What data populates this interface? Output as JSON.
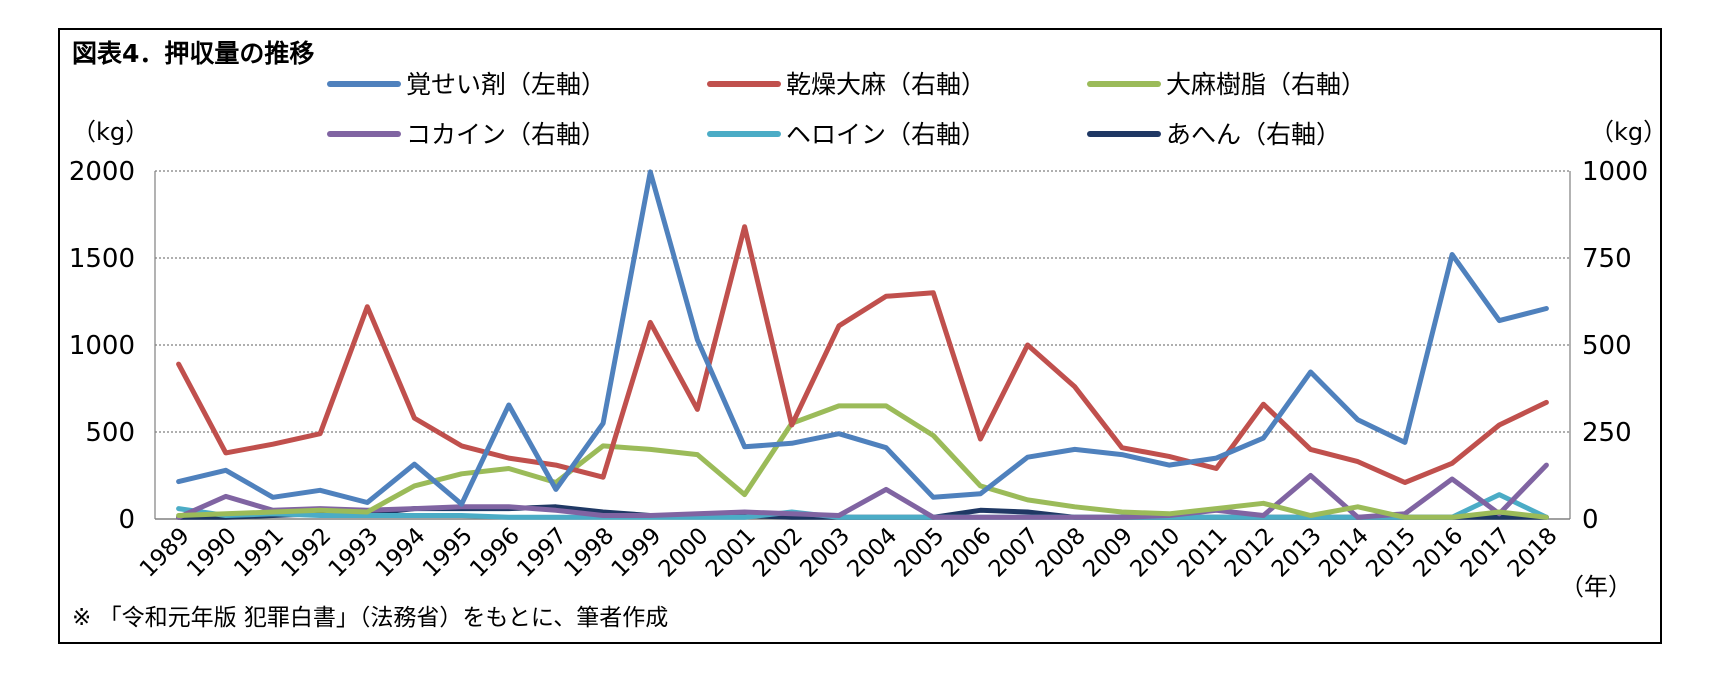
{
  "chart_data": {
    "type": "line",
    "title": "図表4．押収量の推移",
    "ylabel_left": "（kg）",
    "ylabel_right": "（kg）",
    "xlabel": "（年）",
    "source_note": "※ 「令和元年版 犯罪白書」（法務省）をもとに、筆者作成",
    "ylim_left": [
      0,
      2000
    ],
    "ylim_right": [
      0,
      1000
    ],
    "yticks_left": [
      "0",
      "500",
      "1000",
      "1500",
      "2000"
    ],
    "yticks_right": [
      "0",
      "250",
      "500",
      "750",
      "1000"
    ],
    "grid": "horizontal dotted",
    "legend_position": "top",
    "x": [
      "1989",
      "1990",
      "1991",
      "1992",
      "1993",
      "1994",
      "1995",
      "1996",
      "1997",
      "1998",
      "1999",
      "2000",
      "2001",
      "2002",
      "2003",
      "2004",
      "2005",
      "2006",
      "2007",
      "2008",
      "2009",
      "2010",
      "2011",
      "2012",
      "2013",
      "2014",
      "2015",
      "2016",
      "2017",
      "2018"
    ],
    "series": [
      {
        "name": "覚せい剤（左軸）",
        "axis": "left",
        "color": "#4F81BD",
        "values": [
          215,
          280,
          125,
          165,
          95,
          315,
          85,
          655,
          170,
          550,
          1995,
          1030,
          415,
          435,
          490,
          410,
          125,
          145,
          355,
          400,
          370,
          310,
          350,
          465,
          845,
          570,
          440,
          1520,
          1140,
          1210
        ]
      },
      {
        "name": "乾燥大麻（右軸）",
        "axis": "right",
        "color": "#C0504D",
        "values": [
          445,
          190,
          215,
          245,
          610,
          290,
          210,
          175,
          155,
          120,
          565,
          315,
          840,
          270,
          555,
          640,
          650,
          230,
          500,
          380,
          205,
          180,
          145,
          330,
          200,
          165,
          105,
          160,
          270,
          335
        ]
      },
      {
        "name": "大麻樹脂（右軸）",
        "axis": "right",
        "color": "#9BBB59",
        "values": [
          10,
          15,
          20,
          25,
          20,
          95,
          130,
          145,
          105,
          210,
          200,
          185,
          70,
          275,
          325,
          325,
          240,
          95,
          55,
          35,
          20,
          15,
          30,
          45,
          10,
          35,
          5,
          5,
          20,
          5
        ]
      },
      {
        "name": "コカイン（右軸）",
        "axis": "right",
        "color": "#8064A2",
        "values": [
          5,
          65,
          25,
          30,
          25,
          30,
          35,
          35,
          25,
          10,
          10,
          15,
          20,
          15,
          10,
          85,
          5,
          5,
          5,
          5,
          5,
          10,
          25,
          10,
          125,
          5,
          15,
          115,
          15,
          155
        ]
      },
      {
        "name": "ヘロイン（右軸）",
        "axis": "right",
        "color": "#4BACC6",
        "values": [
          30,
          10,
          15,
          10,
          10,
          10,
          10,
          5,
          5,
          5,
          5,
          5,
          5,
          20,
          5,
          5,
          5,
          5,
          5,
          5,
          5,
          5,
          5,
          5,
          5,
          5,
          5,
          5,
          70,
          5
        ]
      },
      {
        "name": "あへん（右軸）",
        "axis": "right",
        "color": "#1F3864",
        "values": [
          5,
          5,
          10,
          15,
          15,
          30,
          30,
          30,
          35,
          20,
          10,
          10,
          10,
          5,
          5,
          5,
          5,
          25,
          20,
          5,
          5,
          5,
          5,
          5,
          5,
          5,
          5,
          5,
          5,
          5
        ]
      }
    ]
  }
}
